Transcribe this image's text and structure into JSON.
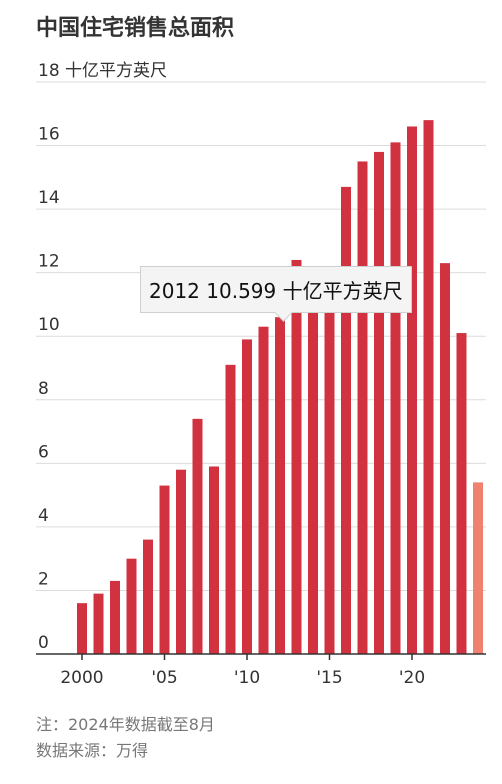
{
  "title": "中国住宅销售总面积",
  "chart_data": {
    "type": "bar",
    "title": "中国住宅销售总面积",
    "unit_label": "十亿平方英尺",
    "ylim": [
      0,
      18
    ],
    "yticks": [
      0,
      2,
      4,
      6,
      8,
      10,
      12,
      14,
      16,
      18
    ],
    "x_tick_labels": [
      "2000",
      "'05",
      "'10",
      "'15",
      "'20"
    ],
    "grid": true,
    "categories": [
      "2000",
      "2001",
      "2002",
      "2003",
      "2004",
      "2005",
      "2006",
      "2007",
      "2008",
      "2009",
      "2010",
      "2011",
      "2012",
      "2013",
      "2014",
      "2015",
      "2016",
      "2017",
      "2018",
      "2019",
      "2020",
      "2021",
      "2022",
      "2023",
      "2024"
    ],
    "values": [
      1.6,
      1.9,
      2.3,
      3.0,
      3.6,
      5.3,
      5.8,
      7.4,
      5.9,
      9.1,
      9.9,
      10.3,
      10.599,
      12.4,
      11.1,
      12.0,
      14.7,
      15.5,
      15.8,
      16.1,
      16.6,
      16.8,
      12.3,
      10.1,
      5.4
    ],
    "highlight_last_partial": true,
    "colors": {
      "bar": "#d23240",
      "partial_bar": "#f08070"
    },
    "tooltip": {
      "year": "2012",
      "value": "10.599",
      "unit": "十亿平方英尺"
    }
  },
  "notes": {
    "note": "注：2024年数据截至8月",
    "source": "数据来源：万得"
  }
}
